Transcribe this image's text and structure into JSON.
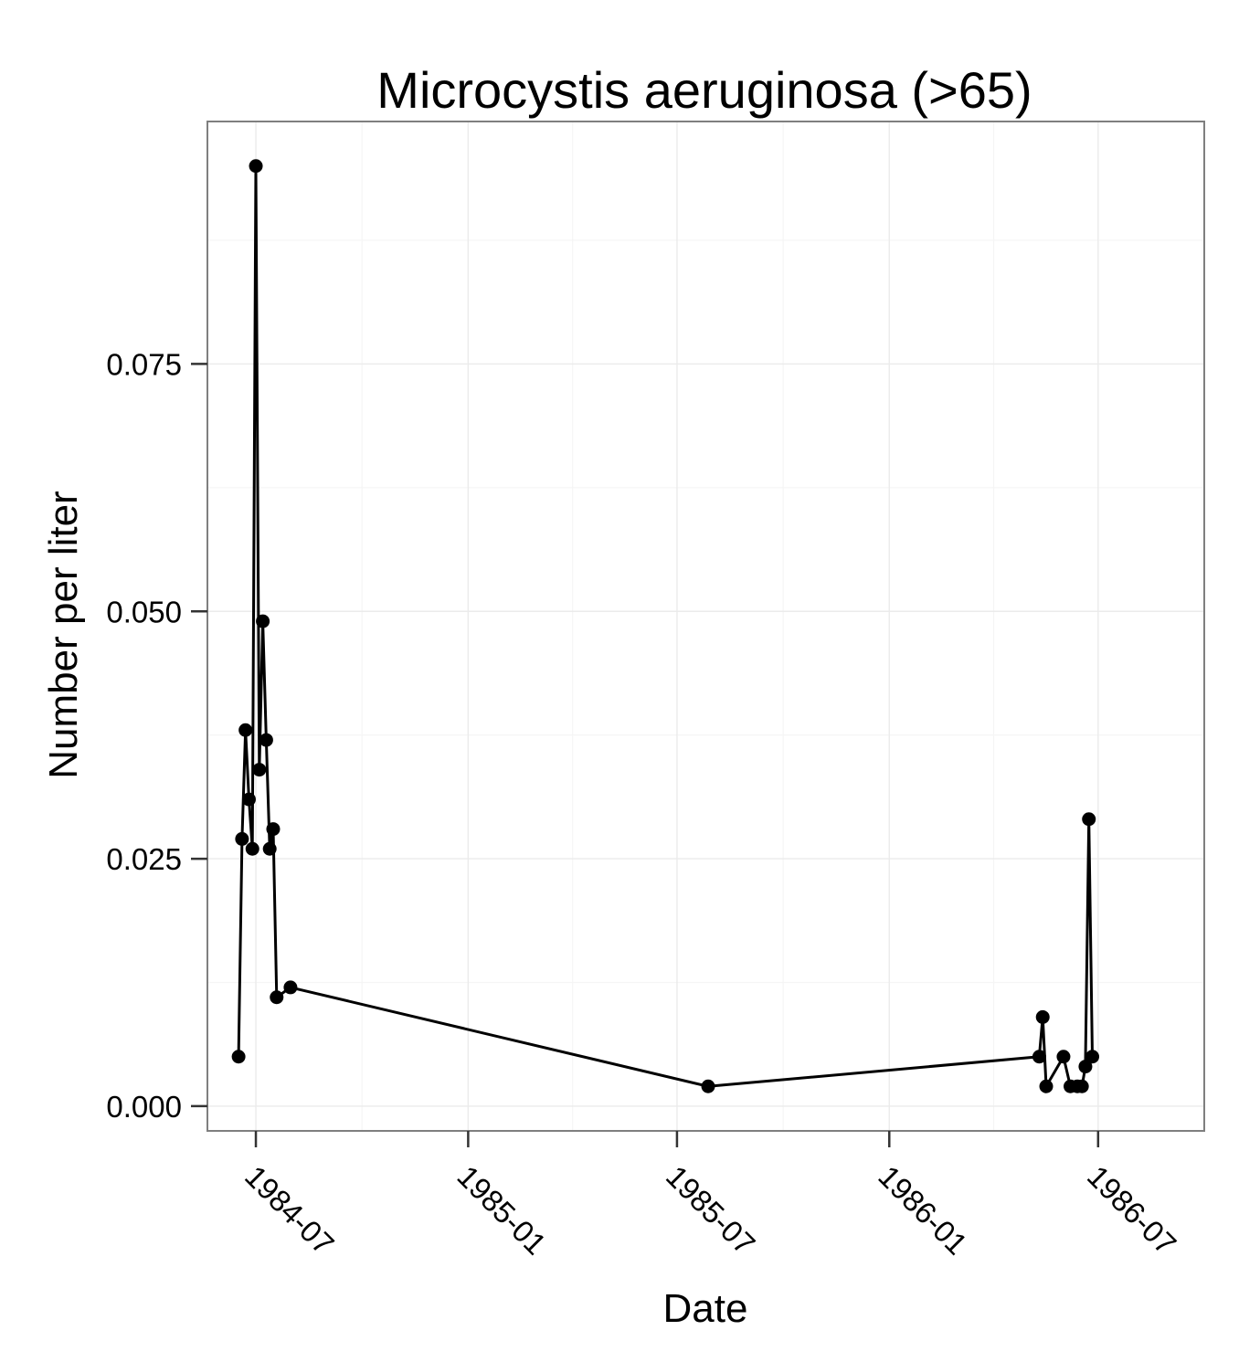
{
  "chart_data": {
    "type": "line",
    "title": "Microcystis aeruginosa (>65)",
    "xlabel": "Date",
    "ylabel": "Number per liter",
    "x_axis_type": "date",
    "xlim": [
      "1984-05-20",
      "1986-10-01"
    ],
    "ylim": [
      -0.0025,
      0.0995
    ],
    "x_ticks": [
      "1984-07-01",
      "1985-01-01",
      "1985-07-01",
      "1986-01-01",
      "1986-07-01"
    ],
    "x_tick_labels": [
      "1984-07",
      "1985-01",
      "1985-07",
      "1986-01",
      "1986-07"
    ],
    "y_ticks": [
      0.0,
      0.025,
      0.05,
      0.075
    ],
    "y_tick_labels": [
      "0.000",
      "0.025",
      "0.050",
      "0.075"
    ],
    "grid": true,
    "legend": "none",
    "series": [
      {
        "color": "#000000",
        "marker": "circle",
        "points": [
          {
            "x": "1984-06-16",
            "y": 0.005
          },
          {
            "x": "1984-06-19",
            "y": 0.027
          },
          {
            "x": "1984-06-22",
            "y": 0.038
          },
          {
            "x": "1984-06-25",
            "y": 0.031
          },
          {
            "x": "1984-06-28",
            "y": 0.026
          },
          {
            "x": "1984-07-01",
            "y": 0.095
          },
          {
            "x": "1984-07-04",
            "y": 0.034
          },
          {
            "x": "1984-07-07",
            "y": 0.049
          },
          {
            "x": "1984-07-10",
            "y": 0.037
          },
          {
            "x": "1984-07-13",
            "y": 0.026
          },
          {
            "x": "1984-07-16",
            "y": 0.028
          },
          {
            "x": "1984-07-19",
            "y": 0.011
          },
          {
            "x": "1984-07-31",
            "y": 0.012
          },
          {
            "x": "1985-07-28",
            "y": 0.002
          },
          {
            "x": "1986-05-11",
            "y": 0.005
          },
          {
            "x": "1986-05-14",
            "y": 0.009
          },
          {
            "x": "1986-05-17",
            "y": 0.002
          },
          {
            "x": "1986-06-01",
            "y": 0.005
          },
          {
            "x": "1986-06-07",
            "y": 0.002
          },
          {
            "x": "1986-06-13",
            "y": 0.002
          },
          {
            "x": "1986-06-17",
            "y": 0.002
          },
          {
            "x": "1986-06-20",
            "y": 0.004
          },
          {
            "x": "1986-06-23",
            "y": 0.029
          },
          {
            "x": "1986-06-26",
            "y": 0.005
          }
        ]
      }
    ]
  }
}
